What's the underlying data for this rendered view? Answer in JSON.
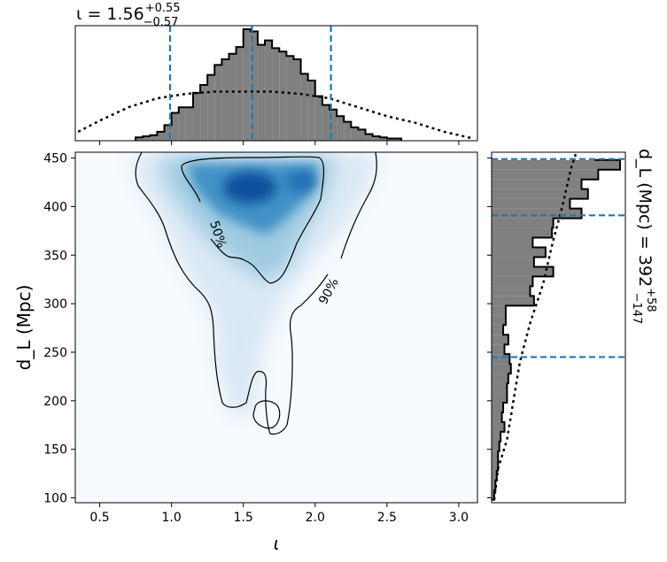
{
  "chart_data": [
    {
      "panel": "top-marginal",
      "type": "histogram",
      "title": {
        "main": "ι = 1.56",
        "sup": "+0.55",
        "sub": "−0.57"
      },
      "xlim": [
        0.33,
        3.13
      ],
      "bins": [
        0.75,
        0.8,
        0.85,
        0.9,
        0.95,
        1.0,
        1.05,
        1.1,
        1.15,
        1.2,
        1.25,
        1.3,
        1.35,
        1.4,
        1.45,
        1.5,
        1.55,
        1.6,
        1.65,
        1.7,
        1.75,
        1.8,
        1.85,
        1.9,
        1.95,
        2.0,
        2.05,
        2.1,
        2.15,
        2.2,
        2.25,
        2.3,
        2.35,
        2.4,
        2.45,
        2.5,
        2.55,
        2.6
      ],
      "values": [
        0.03,
        0.04,
        0.05,
        0.08,
        0.14,
        0.25,
        0.3,
        0.3,
        0.43,
        0.5,
        0.59,
        0.68,
        0.73,
        0.78,
        0.84,
        1.0,
        0.98,
        0.86,
        0.9,
        0.83,
        0.8,
        0.76,
        0.73,
        0.6,
        0.54,
        0.4,
        0.32,
        0.28,
        0.22,
        0.17,
        0.12,
        0.1,
        0.06,
        0.04,
        0.03,
        0.02,
        0.02
      ],
      "prior_x": [
        0.35,
        0.5,
        0.7,
        0.9,
        1.1,
        1.3,
        1.5,
        1.7,
        1.9,
        2.1,
        2.3,
        2.5,
        2.7,
        2.9,
        3.1
      ],
      "prior_y": [
        0.08,
        0.18,
        0.3,
        0.38,
        0.42,
        0.44,
        0.44,
        0.44,
        0.42,
        0.38,
        0.3,
        0.22,
        0.16,
        0.08,
        0.02
      ],
      "markers": [
        0.99,
        1.56,
        2.11
      ]
    },
    {
      "panel": "joint",
      "type": "heatmap",
      "xlabel": "ι",
      "ylabel": "d_L (Mpc)",
      "xlim": [
        0.33,
        3.13
      ],
      "ylim": [
        95,
        456
      ],
      "xticks": [
        "0.5",
        "1.0",
        "1.5",
        "2.0",
        "2.5",
        "3.0"
      ],
      "yticks": [
        "100",
        "150",
        "200",
        "250",
        "300",
        "350",
        "400",
        "450"
      ],
      "contour_labels": [
        "50%",
        "90%"
      ],
      "peak": {
        "x": 1.5,
        "y": 415
      }
    },
    {
      "panel": "right-marginal",
      "type": "histogram",
      "title": {
        "main": "d_L (Mpc) = 392",
        "sup": "+58",
        "sub": "−147"
      },
      "ylim": [
        95,
        456
      ],
      "bins": [
        98,
        108,
        118,
        128,
        138,
        148,
        158,
        168,
        178,
        188,
        198,
        208,
        218,
        228,
        238,
        248,
        258,
        268,
        278,
        288,
        298,
        308,
        318,
        328,
        338,
        348,
        358,
        368,
        378,
        388,
        398,
        408,
        418,
        428,
        438,
        448
      ],
      "values": [
        0.02,
        0.03,
        0.04,
        0.05,
        0.05,
        0.06,
        0.07,
        0.1,
        0.08,
        0.09,
        0.12,
        0.12,
        0.13,
        0.15,
        0.14,
        0.1,
        0.13,
        0.09,
        0.11,
        0.11,
        0.33,
        0.3,
        0.32,
        0.48,
        0.33,
        0.42,
        0.32,
        0.47,
        0.48,
        0.7,
        0.61,
        0.75,
        0.7,
        0.83,
        1.0,
        0.8
      ],
      "prior_y": [
        98,
        130,
        160,
        200,
        240,
        280,
        320,
        360,
        400,
        440,
        456
      ],
      "prior_x": [
        0.02,
        0.05,
        0.12,
        0.17,
        0.22,
        0.3,
        0.4,
        0.47,
        0.55,
        0.62,
        0.66
      ],
      "markers": [
        245,
        391,
        449
      ]
    }
  ]
}
